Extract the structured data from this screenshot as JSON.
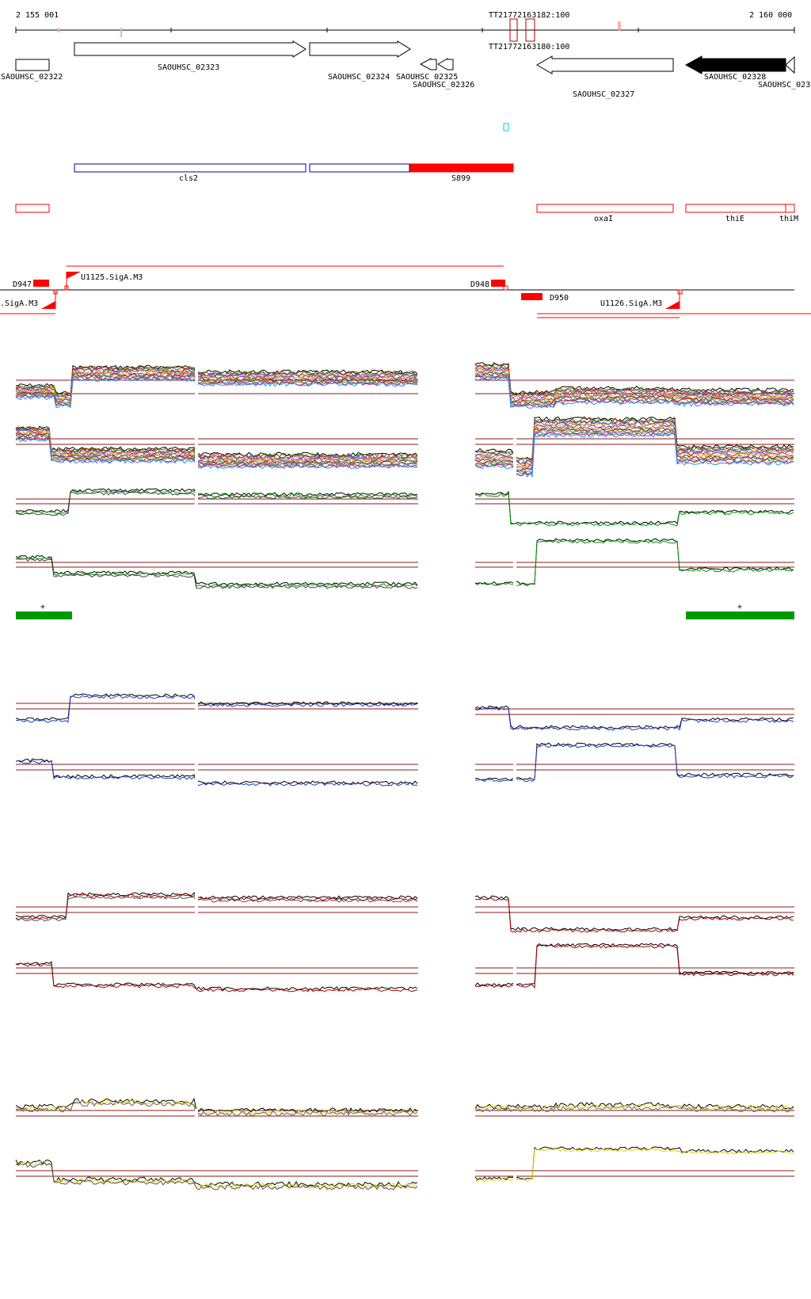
{
  "ruler": {
    "start_label": "2 155 001",
    "end_label": "2 160 000"
  },
  "terminators": {
    "labels_top": [
      "TT21",
      "772",
      "163",
      "182",
      ":100"
    ],
    "labels_bottom": [
      "TT21",
      "772",
      "163",
      "180",
      ":100"
    ]
  },
  "genes": [
    {
      "name": "SAOUHSC_02322"
    },
    {
      "name": "SAOUHSC_02323"
    },
    {
      "name": "SAOUHSC_02324"
    },
    {
      "name": "SAOUHSC_02325"
    },
    {
      "name": "SAOUHSC_02326"
    },
    {
      "name": "SAOUHSC_02327"
    },
    {
      "name": "SAOUHSC_02328"
    },
    {
      "name": "SAOUHSC_023"
    }
  ],
  "features": [
    {
      "name": "cls2"
    },
    {
      "name": "S899"
    },
    {
      "name": "oxaI"
    },
    {
      "name": "thiE"
    },
    {
      "name": "thiM"
    }
  ],
  "promoters": [
    {
      "name": "D947"
    },
    {
      "name": "U1125.SigA.M3"
    },
    {
      "name": "D948"
    },
    {
      "name": "D950"
    },
    {
      "name": ".SigA.M3"
    },
    {
      "name": "U1126.SigA.M3"
    }
  ],
  "strand_marks": [
    "+",
    "+"
  ],
  "colors": {
    "gene_outline": "#000000",
    "blue_feature": "#0000aa",
    "red_feature": "#ff0000",
    "green": "#009900",
    "blue_track": "#1f3fbf",
    "red_track": "#aa0000",
    "yellow_track": "#d8d800",
    "threshold": "#8b1a1a",
    "cyan_marker": "#00cccc"
  }
}
